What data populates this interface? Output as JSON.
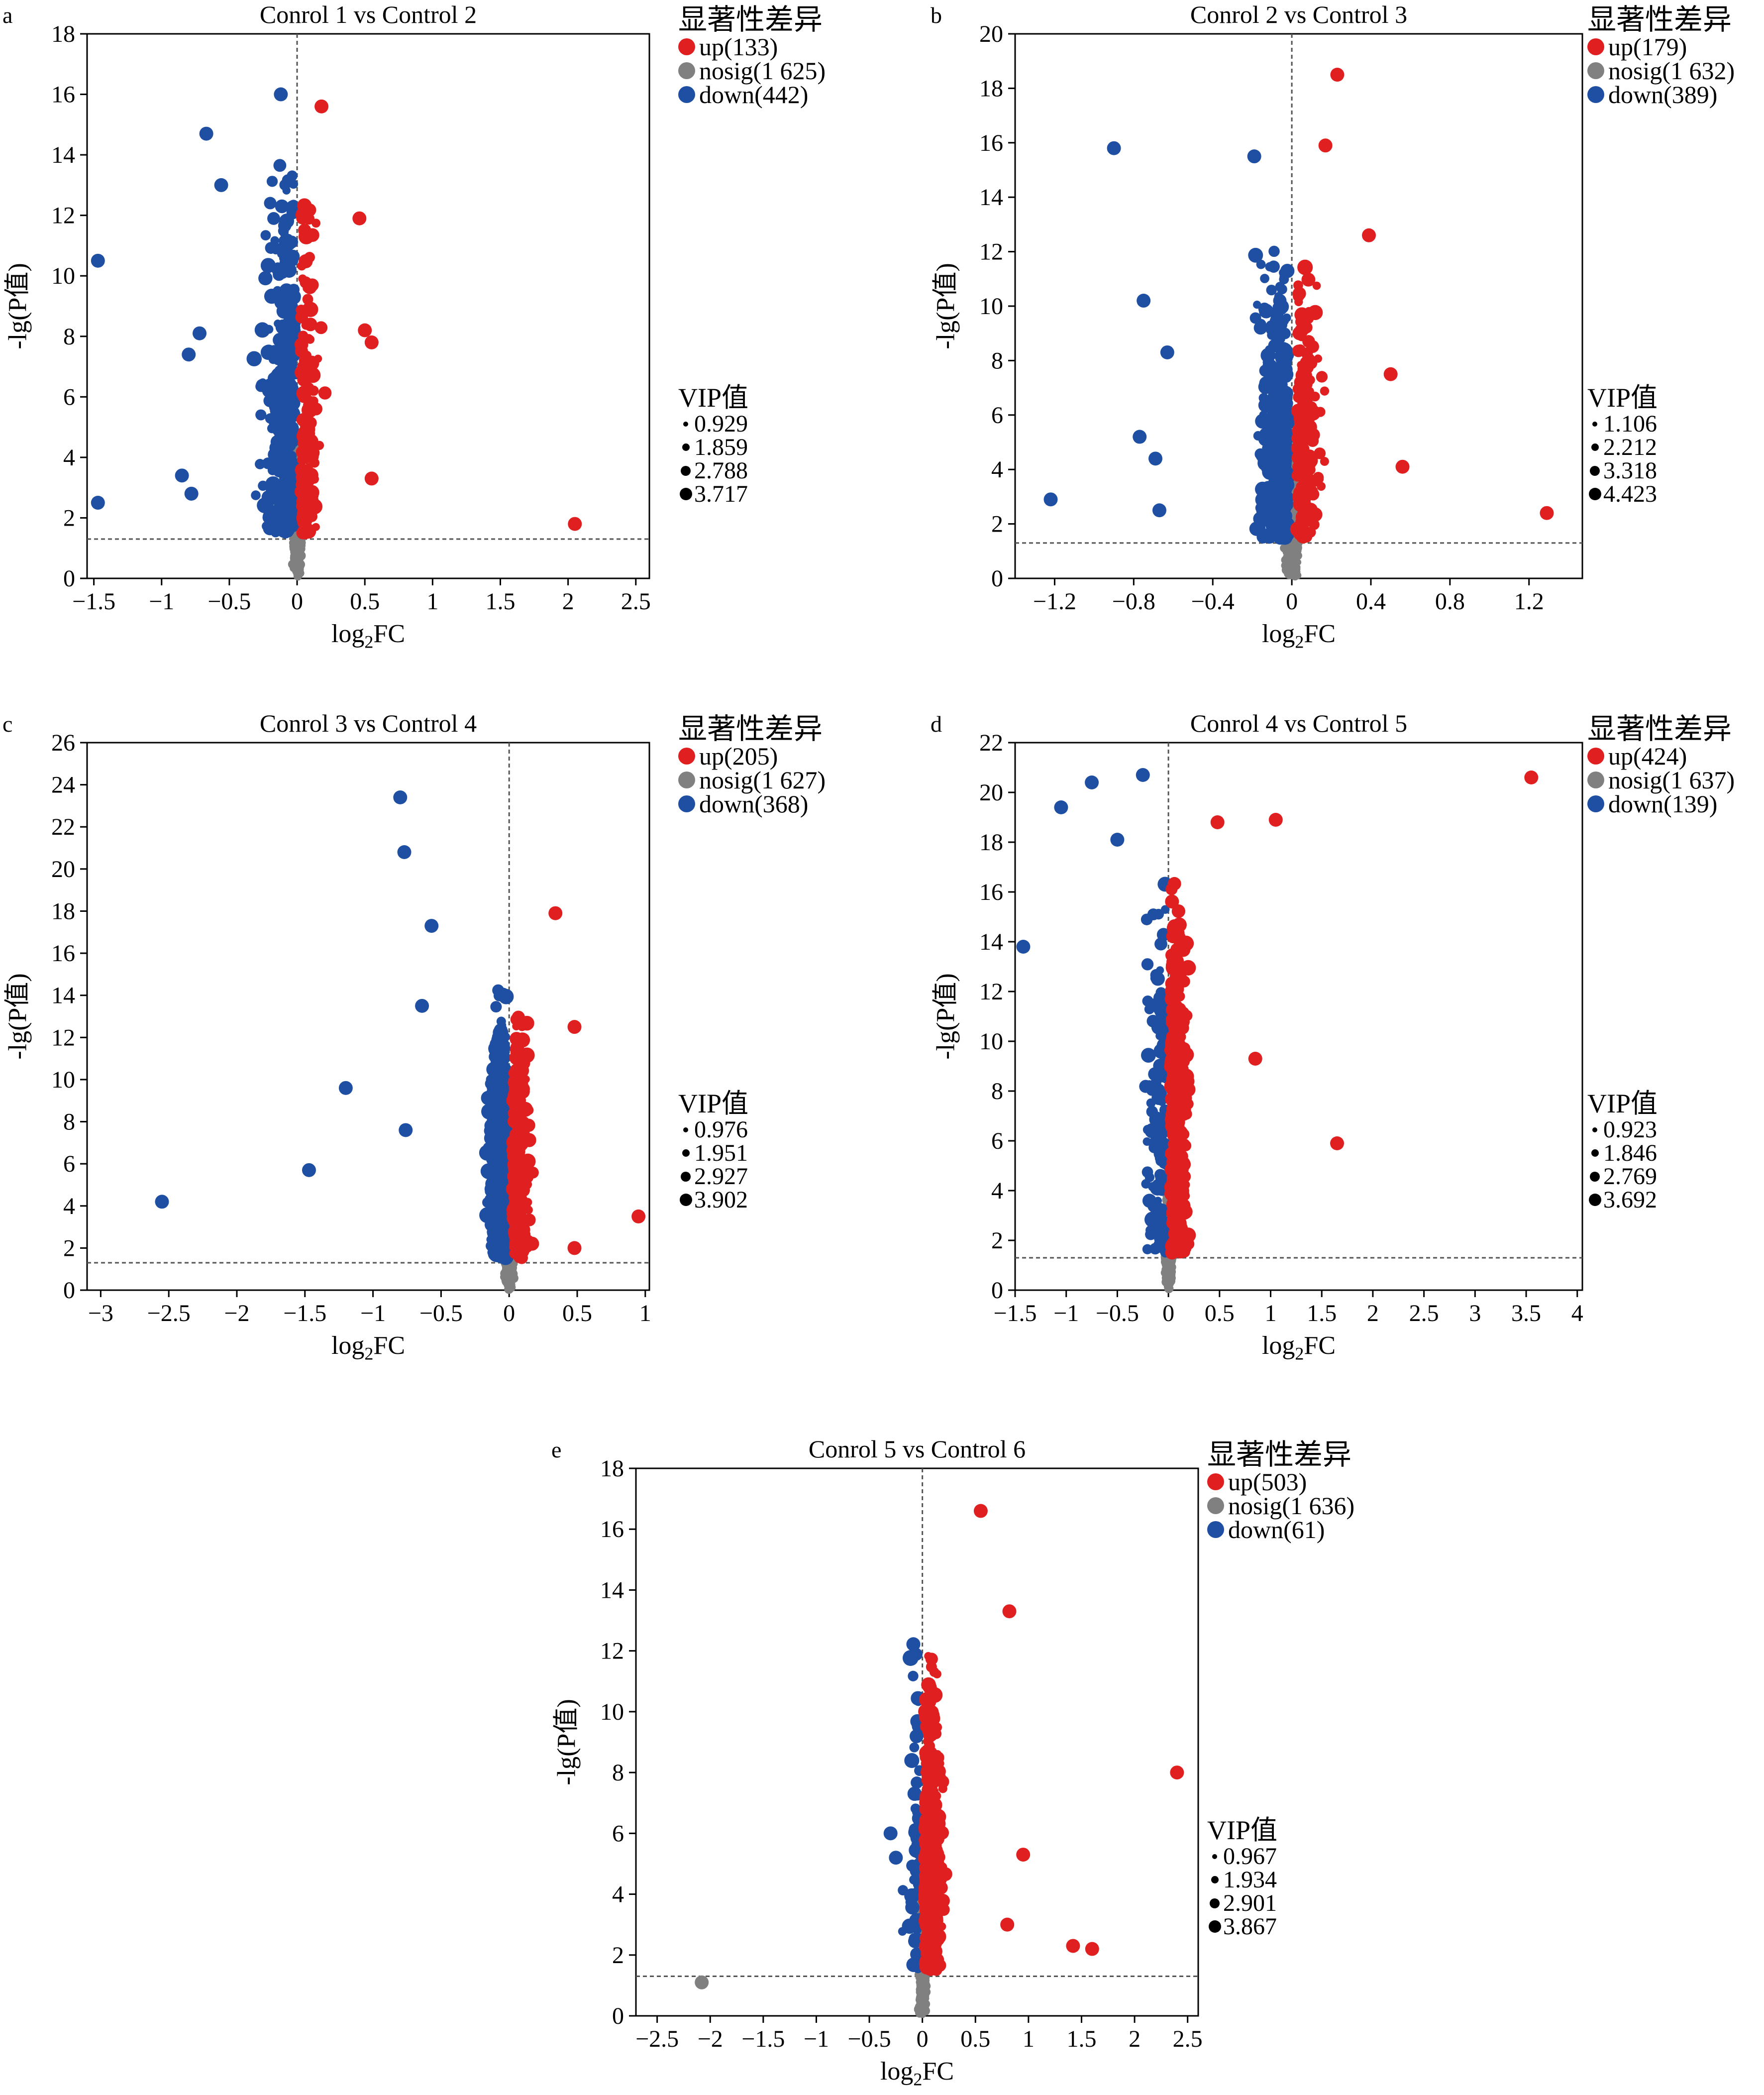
{
  "legend_title": "显著性差异",
  "vip_title": "VIP值",
  "x_label_base": "log",
  "x_label_sub": "2",
  "x_label_suffix": "FC",
  "y_label": "-lg(P值)",
  "colors": {
    "up": "#e02020",
    "nosig": "#808080",
    "down": "#1f4fa3"
  },
  "chart_data": [
    {
      "id": "a",
      "panel_letter": "a",
      "type": "scatter",
      "title": "Conrol 1 vs Control 2",
      "xlabel": "log2FC",
      "ylabel": "-lg(P值)",
      "xlim": [
        -1.55,
        2.6
      ],
      "ylim": [
        0,
        18
      ],
      "xticks": [
        -1.5,
        -1,
        -0.5,
        0,
        0.5,
        1,
        1.5,
        2,
        2.5
      ],
      "xtick_labels": [
        "−1.5",
        "−1",
        "−0.5",
        "0",
        "0.5",
        "1",
        "1.5",
        "2",
        "2.5"
      ],
      "yticks": [
        0,
        2,
        4,
        6,
        8,
        10,
        12,
        14,
        16,
        18
      ],
      "ytick_labels": [
        "0",
        "2",
        "4",
        "6",
        "8",
        "10",
        "12",
        "14",
        "16",
        "18"
      ],
      "threshold_y": 1.3,
      "vline_x": 0,
      "legend": [
        {
          "key": "up",
          "label": "up(133)",
          "count": 133
        },
        {
          "key": "nosig",
          "label": "nosig(1 625)",
          "count": 1625
        },
        {
          "key": "down",
          "label": "down(442)",
          "count": 442
        }
      ],
      "vip": [
        "0.929",
        "1.859",
        "2.788",
        "3.717"
      ],
      "notable_points": [
        {
          "x": -1.47,
          "y": 10.5,
          "group": "down"
        },
        {
          "x": -1.47,
          "y": 2.5,
          "group": "down"
        },
        {
          "x": -0.67,
          "y": 14.7,
          "group": "down"
        },
        {
          "x": -0.56,
          "y": 13.0,
          "group": "down"
        },
        {
          "x": -0.85,
          "y": 3.4,
          "group": "down"
        },
        {
          "x": -0.78,
          "y": 2.8,
          "group": "down"
        },
        {
          "x": -0.72,
          "y": 8.1,
          "group": "down"
        },
        {
          "x": -0.8,
          "y": 7.4,
          "group": "down"
        },
        {
          "x": -0.12,
          "y": 16.0,
          "group": "down"
        },
        {
          "x": 0.18,
          "y": 15.6,
          "group": "up"
        },
        {
          "x": 0.46,
          "y": 11.9,
          "group": "up"
        },
        {
          "x": 0.5,
          "y": 8.2,
          "group": "up"
        },
        {
          "x": 0.55,
          "y": 7.8,
          "group": "up"
        },
        {
          "x": 0.55,
          "y": 3.3,
          "group": "up"
        },
        {
          "x": 2.05,
          "y": 1.8,
          "group": "up"
        }
      ]
    },
    {
      "id": "b",
      "panel_letter": "b",
      "type": "scatter",
      "title": "Conrol 2 vs Control 3",
      "xlabel": "log2FC",
      "ylabel": "-lg(P值)",
      "xlim": [
        -1.4,
        1.47
      ],
      "ylim": [
        0,
        20
      ],
      "xticks": [
        -1.2,
        -0.8,
        -0.4,
        0,
        0.4,
        0.8,
        1.2
      ],
      "xtick_labels": [
        "−1.2",
        "−0.8",
        "−0.4",
        "0",
        "0.4",
        "0.8",
        "1.2"
      ],
      "yticks": [
        0,
        2,
        4,
        6,
        8,
        10,
        12,
        14,
        16,
        18,
        20
      ],
      "ytick_labels": [
        "0",
        "2",
        "4",
        "6",
        "8",
        "10",
        "12",
        "14",
        "16",
        "18",
        "20"
      ],
      "threshold_y": 1.3,
      "vline_x": 0,
      "legend": [
        {
          "key": "up",
          "label": "up(179)",
          "count": 179
        },
        {
          "key": "nosig",
          "label": "nosig(1 632)",
          "count": 1632
        },
        {
          "key": "down",
          "label": "down(389)",
          "count": 389
        }
      ],
      "vip": [
        "1.106",
        "2.212",
        "3.318",
        "4.423"
      ],
      "notable_points": [
        {
          "x": -0.9,
          "y": 15.8,
          "group": "down"
        },
        {
          "x": -0.75,
          "y": 10.2,
          "group": "down"
        },
        {
          "x": -0.63,
          "y": 8.3,
          "group": "down"
        },
        {
          "x": -0.77,
          "y": 5.2,
          "group": "down"
        },
        {
          "x": -0.69,
          "y": 4.4,
          "group": "down"
        },
        {
          "x": -1.22,
          "y": 2.9,
          "group": "down"
        },
        {
          "x": -0.67,
          "y": 2.5,
          "group": "down"
        },
        {
          "x": -0.19,
          "y": 15.5,
          "group": "down"
        },
        {
          "x": 0.23,
          "y": 18.5,
          "group": "up"
        },
        {
          "x": 0.17,
          "y": 15.9,
          "group": "up"
        },
        {
          "x": 0.39,
          "y": 12.6,
          "group": "up"
        },
        {
          "x": 0.5,
          "y": 7.5,
          "group": "up"
        },
        {
          "x": 0.56,
          "y": 4.1,
          "group": "up"
        },
        {
          "x": 1.29,
          "y": 2.4,
          "group": "up"
        }
      ]
    },
    {
      "id": "c",
      "panel_letter": "c",
      "type": "scatter",
      "title": "Conrol 3 vs Control 4",
      "xlabel": "log2FC",
      "ylabel": "-lg(P值)",
      "xlim": [
        -3.1,
        1.03
      ],
      "ylim": [
        0,
        26
      ],
      "xticks": [
        -3,
        -2.5,
        -2,
        -1.5,
        -1,
        -0.5,
        0,
        0.5,
        1
      ],
      "xtick_labels": [
        "−3",
        "−2.5",
        "−2",
        "−1.5",
        "−1",
        "−0.5",
        "0",
        "0.5",
        "1"
      ],
      "yticks": [
        0,
        2,
        4,
        6,
        8,
        10,
        12,
        14,
        16,
        18,
        20,
        22,
        24,
        26
      ],
      "ytick_labels": [
        "0",
        "2",
        "4",
        "6",
        "8",
        "10",
        "12",
        "14",
        "16",
        "18",
        "20",
        "22",
        "24",
        "26"
      ],
      "threshold_y": 1.3,
      "vline_x": 0,
      "legend": [
        {
          "key": "up",
          "label": "up(205)",
          "count": 205
        },
        {
          "key": "nosig",
          "label": "nosig(1 627)",
          "count": 1627
        },
        {
          "key": "down",
          "label": "down(368)",
          "count": 368
        }
      ],
      "vip": [
        "0.976",
        "1.951",
        "2.927",
        "3.902"
      ],
      "notable_points": [
        {
          "x": -2.55,
          "y": 4.2,
          "group": "down"
        },
        {
          "x": -1.47,
          "y": 5.7,
          "group": "down"
        },
        {
          "x": -1.2,
          "y": 9.6,
          "group": "down"
        },
        {
          "x": -0.8,
          "y": 23.4,
          "group": "down"
        },
        {
          "x": -0.77,
          "y": 20.8,
          "group": "down"
        },
        {
          "x": -0.57,
          "y": 17.3,
          "group": "down"
        },
        {
          "x": -0.64,
          "y": 13.5,
          "group": "down"
        },
        {
          "x": -0.76,
          "y": 7.6,
          "group": "down"
        },
        {
          "x": 0.34,
          "y": 17.9,
          "group": "up"
        },
        {
          "x": 0.48,
          "y": 12.5,
          "group": "up"
        },
        {
          "x": 0.95,
          "y": 3.5,
          "group": "up"
        },
        {
          "x": 0.48,
          "y": 2.0,
          "group": "up"
        }
      ]
    },
    {
      "id": "d",
      "panel_letter": "d",
      "type": "scatter",
      "title": "Conrol 4 vs Control 5",
      "xlabel": "log2FC",
      "ylabel": "-lg(P值)",
      "xlim": [
        -1.5,
        4.05
      ],
      "ylim": [
        0,
        22
      ],
      "xticks": [
        -1.5,
        -1,
        -0.5,
        0,
        0.5,
        1,
        1.5,
        2,
        2.5,
        3,
        3.5,
        4
      ],
      "xtick_labels": [
        "−1.5",
        "−1",
        "−0.5",
        "0",
        "0.5",
        "1",
        "1.5",
        "2",
        "2.5",
        "3",
        "3.5",
        "4"
      ],
      "yticks": [
        0,
        2,
        4,
        6,
        8,
        10,
        12,
        14,
        16,
        18,
        20,
        22
      ],
      "ytick_labels": [
        "0",
        "2",
        "4",
        "6",
        "8",
        "10",
        "12",
        "14",
        "16",
        "18",
        "20",
        "22"
      ],
      "threshold_y": 1.3,
      "vline_x": 0,
      "legend": [
        {
          "key": "up",
          "label": "up(424)",
          "count": 424
        },
        {
          "key": "nosig",
          "label": "nosig(1 637)",
          "count": 1637
        },
        {
          "key": "down",
          "label": "down(139)",
          "count": 139
        }
      ],
      "vip": [
        "0.923",
        "1.846",
        "2.769",
        "3.692"
      ],
      "notable_points": [
        {
          "x": -1.42,
          "y": 13.8,
          "group": "down"
        },
        {
          "x": -1.05,
          "y": 19.4,
          "group": "down"
        },
        {
          "x": -0.75,
          "y": 20.4,
          "group": "down"
        },
        {
          "x": -0.25,
          "y": 20.7,
          "group": "down"
        },
        {
          "x": -0.5,
          "y": 18.1,
          "group": "down"
        },
        {
          "x": 3.55,
          "y": 20.6,
          "group": "up"
        },
        {
          "x": 1.05,
          "y": 18.9,
          "group": "up"
        },
        {
          "x": 0.48,
          "y": 18.8,
          "group": "up"
        },
        {
          "x": 1.65,
          "y": 5.9,
          "group": "up"
        },
        {
          "x": 0.85,
          "y": 9.3,
          "group": "up"
        }
      ]
    },
    {
      "id": "e",
      "panel_letter": "e",
      "type": "scatter",
      "title": "Conrol 5 vs Control 6",
      "xlabel": "log2FC",
      "ylabel": "-lg(P值)",
      "xlim": [
        -2.7,
        2.6
      ],
      "ylim": [
        0,
        18
      ],
      "xticks": [
        -2.5,
        -2,
        -1.5,
        -1,
        -0.5,
        0,
        0.5,
        1,
        1.5,
        2,
        2.5
      ],
      "xtick_labels": [
        "−2.5",
        "−2",
        "−1.5",
        "−1",
        "−0.5",
        "0",
        "0.5",
        "1",
        "1.5",
        "2",
        "2.5"
      ],
      "yticks": [
        0,
        2,
        4,
        6,
        8,
        10,
        12,
        14,
        16,
        18
      ],
      "ytick_labels": [
        "0",
        "2",
        "4",
        "6",
        "8",
        "10",
        "12",
        "14",
        "16",
        "18"
      ],
      "threshold_y": 1.3,
      "vline_x": 0,
      "legend": [
        {
          "key": "up",
          "label": "up(503)",
          "count": 503
        },
        {
          "key": "nosig",
          "label": "nosig(1 636)",
          "count": 1636
        },
        {
          "key": "down",
          "label": "down(61)",
          "count": 61
        }
      ],
      "vip": [
        "0.967",
        "1.934",
        "2.901",
        "3.867"
      ],
      "notable_points": [
        {
          "x": -2.08,
          "y": 1.1,
          "group": "nosig"
        },
        {
          "x": 0.55,
          "y": 16.6,
          "group": "up"
        },
        {
          "x": 0.82,
          "y": 13.3,
          "group": "up"
        },
        {
          "x": 2.4,
          "y": 8.0,
          "group": "up"
        },
        {
          "x": 0.95,
          "y": 5.3,
          "group": "up"
        },
        {
          "x": 1.42,
          "y": 2.3,
          "group": "up"
        },
        {
          "x": 1.6,
          "y": 2.2,
          "group": "up"
        },
        {
          "x": 0.8,
          "y": 3.0,
          "group": "up"
        },
        {
          "x": -0.3,
          "y": 6.0,
          "group": "down"
        },
        {
          "x": -0.25,
          "y": 5.2,
          "group": "down"
        }
      ]
    }
  ]
}
